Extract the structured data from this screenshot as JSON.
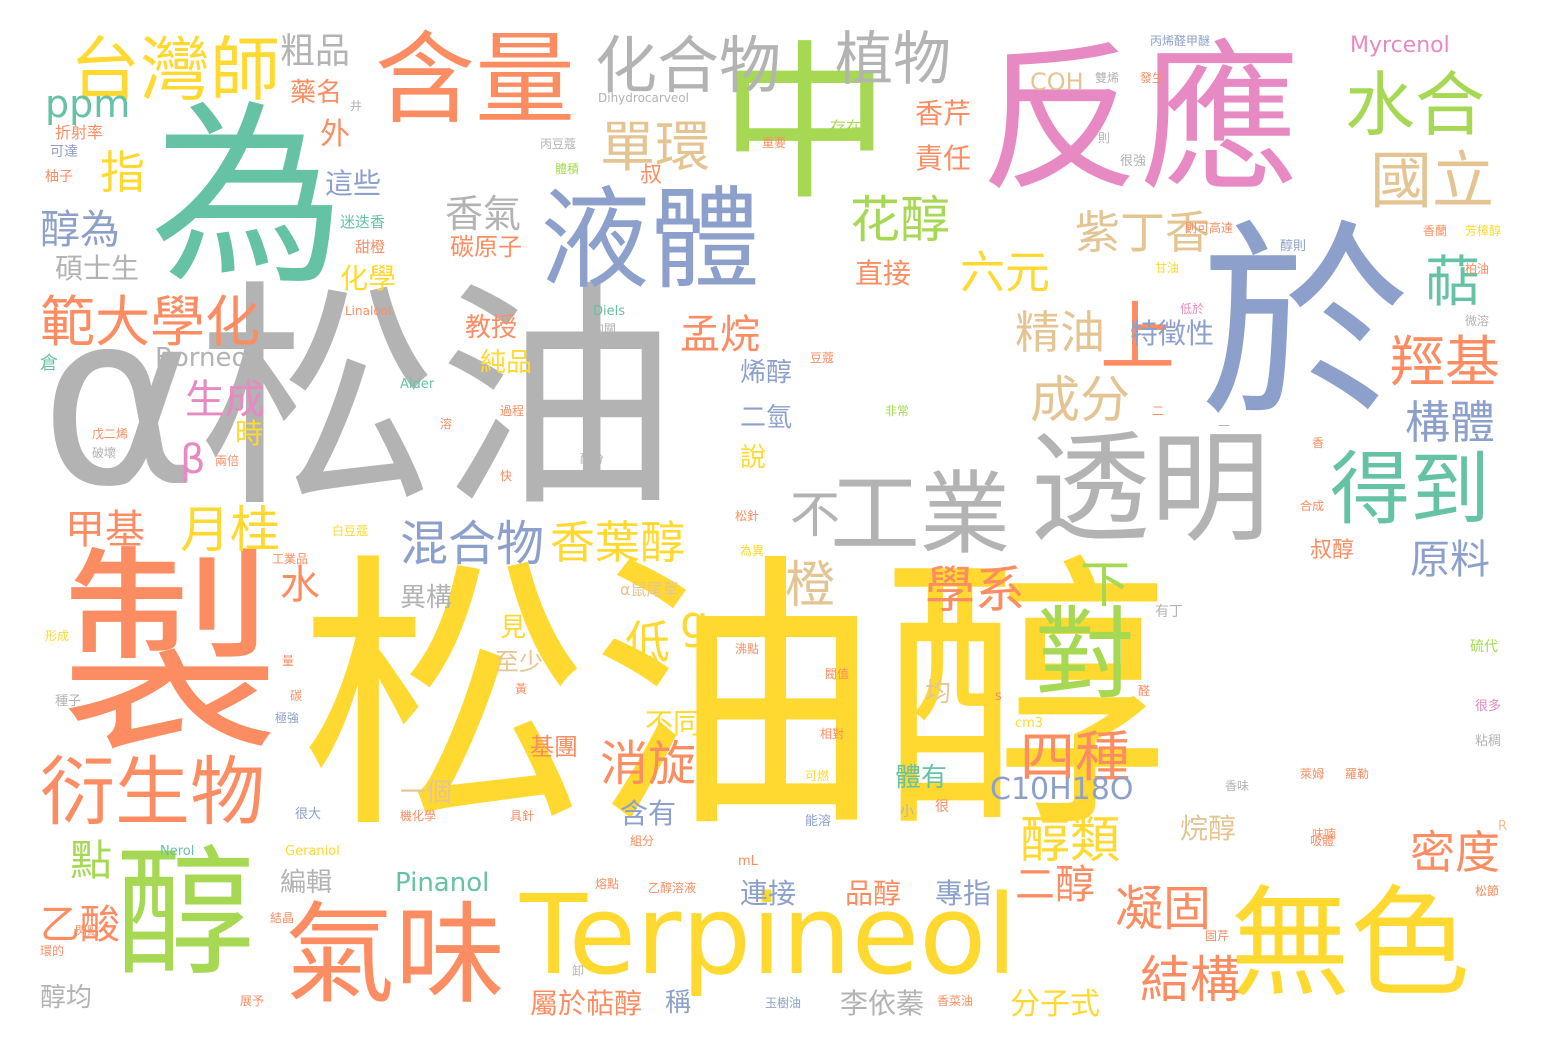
{
  "palette": {
    "yellow": "#ffd92f",
    "orange": "#fc8d62",
    "gray": "#b3b3b3",
    "teal": "#66c2a5",
    "blue": "#8da0cb",
    "pink": "#e78ac3",
    "green": "#a6d854",
    "tan": "#e5c494"
  },
  "words": [
    {
      "text": "松油醇"
    },
    {
      "text": "α松油"
    },
    {
      "text": "製"
    },
    {
      "text": "為"
    },
    {
      "text": "中"
    },
    {
      "text": "反應"
    },
    {
      "text": "於"
    },
    {
      "text": "Terpineol"
    },
    {
      "text": "醇"
    },
    {
      "text": "氣味"
    },
    {
      "text": "無色"
    },
    {
      "text": "液體"
    },
    {
      "text": "含量"
    },
    {
      "text": "透明"
    },
    {
      "text": "工業"
    },
    {
      "text": "對"
    },
    {
      "text": "得到"
    },
    {
      "text": "衍生物"
    },
    {
      "text": "台灣師"
    },
    {
      "text": "範大學化"
    },
    {
      "text": "化合物"
    },
    {
      "text": "植物"
    },
    {
      "text": "水合"
    },
    {
      "text": "國立"
    },
    {
      "text": "單環"
    },
    {
      "text": "上"
    },
    {
      "text": "花醇"
    },
    {
      "text": "紫丁香"
    },
    {
      "text": "六元"
    },
    {
      "text": "萜"
    },
    {
      "text": "羥基"
    },
    {
      "text": "構體"
    },
    {
      "text": "成分"
    },
    {
      "text": "精油"
    },
    {
      "text": "孟烷"
    },
    {
      "text": "香葉醇"
    },
    {
      "text": "混合物"
    },
    {
      "text": "不"
    },
    {
      "text": "橙"
    },
    {
      "text": "學系"
    },
    {
      "text": "下"
    },
    {
      "text": "四種"
    },
    {
      "text": "醇類"
    },
    {
      "text": "二醇"
    },
    {
      "text": "凝固"
    },
    {
      "text": "結構"
    },
    {
      "text": "密度"
    },
    {
      "text": "原料"
    },
    {
      "text": "月桂"
    },
    {
      "text": "甲基"
    },
    {
      "text": "生成"
    },
    {
      "text": "醇為"
    },
    {
      "text": "指"
    },
    {
      "text": "ppm"
    },
    {
      "text": "粗品"
    },
    {
      "text": "外"
    },
    {
      "text": "香氣"
    },
    {
      "text": "碳原子"
    },
    {
      "text": "Borneol"
    },
    {
      "text": "β"
    },
    {
      "text": "時"
    },
    {
      "text": "化學"
    },
    {
      "text": "碩士生"
    },
    {
      "text": "C10H18O"
    },
    {
      "text": "Pinanol"
    },
    {
      "text": "消旋"
    },
    {
      "text": "低"
    },
    {
      "text": "g"
    },
    {
      "text": "點"
    },
    {
      "text": "乙酸"
    },
    {
      "text": "水"
    },
    {
      "text": "分子式"
    },
    {
      "text": "李依蓁"
    },
    {
      "text": "屬於萜醇"
    },
    {
      "text": "品醇"
    },
    {
      "text": "連接"
    },
    {
      "text": "專指"
    },
    {
      "text": "特徵性"
    },
    {
      "text": "烯醇"
    },
    {
      "text": "教授"
    },
    {
      "text": "純品"
    },
    {
      "text": "香芹"
    },
    {
      "text": "責任"
    },
    {
      "text": "直接"
    },
    {
      "text": "這些"
    },
    {
      "text": "藥名"
    },
    {
      "text": "COH"
    },
    {
      "text": "Myrcenol"
    },
    {
      "text": "二氫"
    },
    {
      "text": "說"
    },
    {
      "text": "叔醇"
    },
    {
      "text": "一個"
    },
    {
      "text": "基團"
    },
    {
      "text": "不同"
    },
    {
      "text": "含有"
    },
    {
      "text": "至少"
    },
    {
      "text": "見"
    },
    {
      "text": "異構"
    },
    {
      "text": "烷醇"
    },
    {
      "text": "體有"
    },
    {
      "text": "均"
    },
    {
      "text": "編輯"
    },
    {
      "text": "醇均"
    },
    {
      "text": "稱"
    },
    {
      "text": "叔"
    },
    {
      "text": "存在"
    },
    {
      "text": "Dihydrocarveol"
    },
    {
      "text": "Linalool"
    },
    {
      "text": "Nerol"
    },
    {
      "text": "Geraniol"
    },
    {
      "text": "Alder"
    },
    {
      "text": "Diels"
    },
    {
      "text": "mL"
    },
    {
      "text": "cm3"
    },
    {
      "text": "s"
    },
    {
      "text": "R"
    },
    {
      "text": "折射率"
    },
    {
      "text": "可達"
    },
    {
      "text": "柚子"
    },
    {
      "text": "迷迭香"
    },
    {
      "text": "甜橙"
    },
    {
      "text": "倉"
    },
    {
      "text": "丙烯醛甲醚"
    },
    {
      "text": "雙烯"
    },
    {
      "text": "發生"
    },
    {
      "text": "芳樟醇"
    },
    {
      "text": "柏油"
    },
    {
      "text": "微溶"
    },
    {
      "text": "甘油"
    },
    {
      "text": "醇則"
    },
    {
      "text": "很強"
    },
    {
      "text": "則"
    },
    {
      "text": "非常"
    },
    {
      "text": "合成"
    },
    {
      "text": "松針"
    },
    {
      "text": "為異"
    },
    {
      "text": "α鼠尾草"
    },
    {
      "text": "有丁"
    },
    {
      "text": "硫代"
    },
    {
      "text": "很多"
    },
    {
      "text": "粘稠"
    },
    {
      "text": "萊姆"
    },
    {
      "text": "香味"
    },
    {
      "text": "羅勒"
    },
    {
      "text": "快"
    },
    {
      "text": "過程"
    },
    {
      "text": "溶"
    },
    {
      "text": "兩倍"
    },
    {
      "text": "碳"
    },
    {
      "text": "種子"
    },
    {
      "text": "極強"
    },
    {
      "text": "很大"
    },
    {
      "text": "機化學"
    },
    {
      "text": "具針"
    },
    {
      "text": "組分"
    },
    {
      "text": "能溶"
    },
    {
      "text": "可燃"
    },
    {
      "text": "小"
    },
    {
      "text": "很"
    },
    {
      "text": "熔點"
    },
    {
      "text": "閃點"
    },
    {
      "text": "結晶"
    },
    {
      "text": "乙醇溶液"
    },
    {
      "text": "展予"
    },
    {
      "text": "香菜油"
    },
    {
      "text": "玉樹油"
    },
    {
      "text": "白豆蔻"
    },
    {
      "text": "工業品"
    },
    {
      "text": "戊二烯"
    },
    {
      "text": "破壞"
    },
    {
      "text": "丙豆蔻"
    },
    {
      "text": "體積"
    },
    {
      "text": "的關"
    },
    {
      "text": "沸點"
    },
    {
      "text": "閥值"
    },
    {
      "text": "黃"
    },
    {
      "text": "醛"
    },
    {
      "text": "環的"
    },
    {
      "text": "形成"
    },
    {
      "text": "松節"
    },
    {
      "text": "呋喃"
    },
    {
      "text": "豆蔻"
    },
    {
      "text": "香蘭"
    },
    {
      "text": "量"
    },
    {
      "text": "卸"
    },
    {
      "text": "固芹"
    },
    {
      "text": "吸體"
    },
    {
      "text": "香"
    },
    {
      "text": "井"
    },
    {
      "text": "醇分"
    },
    {
      "text": "則可高達"
    },
    {
      "text": "重要"
    },
    {
      "text": "低於"
    },
    {
      "text": "相對"
    },
    {
      "text": "一"
    },
    {
      "text": "二"
    }
  ]
}
